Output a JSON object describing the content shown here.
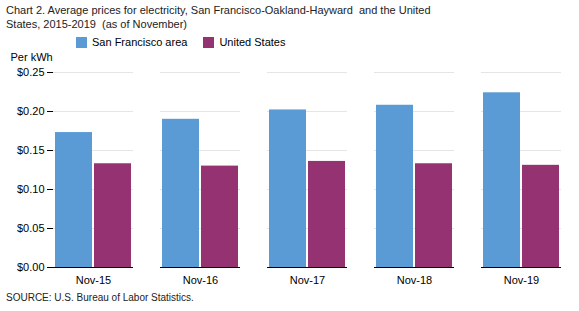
{
  "chart_data": {
    "type": "bar",
    "title": "Chart 2. Average prices for electricity, San Francisco-Oakland-Hayward  and the United\nStates, 2015-2019  (as of November)",
    "ylabel": "Per kWh",
    "source": "SOURCE: U.S. Bureau of Labor Statistics.",
    "categories": [
      "Nov-15",
      "Nov-16",
      "Nov-17",
      "Nov-18",
      "Nov-19"
    ],
    "series": [
      {
        "name": "San Francisco area",
        "color": "#5B9BD5",
        "values": [
          0.173,
          0.19,
          0.202,
          0.208,
          0.224
        ]
      },
      {
        "name": "United States",
        "color": "#953271",
        "values": [
          0.133,
          0.13,
          0.136,
          0.133,
          0.131
        ]
      }
    ],
    "ylim": [
      0,
      0.25
    ],
    "yticks": [
      {
        "value": 0,
        "label": "$0.00"
      },
      {
        "value": 0.05,
        "label": "$0.05"
      },
      {
        "value": 0.1,
        "label": "$0.10"
      },
      {
        "value": 0.15,
        "label": "$0.15"
      },
      {
        "value": 0.2,
        "label": "$0.20"
      },
      {
        "value": 0.25,
        "label": "$0.25"
      }
    ],
    "grid": true,
    "legend": "top"
  }
}
